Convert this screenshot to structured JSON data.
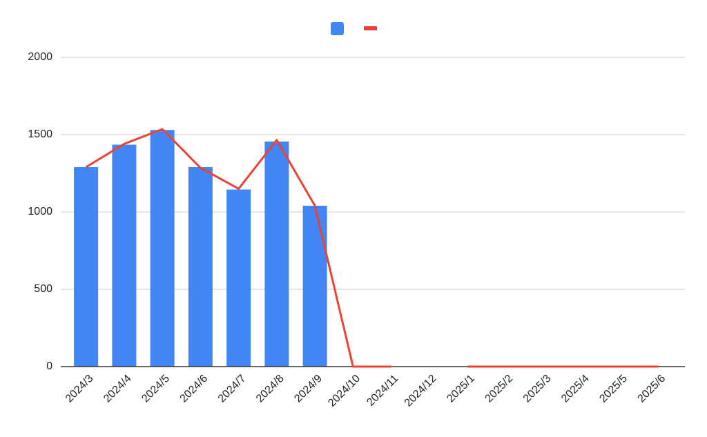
{
  "chart_data": {
    "type": "bar",
    "categories": [
      "2024/3",
      "2024/4",
      "2024/5",
      "2024/6",
      "2024/7",
      "2024/8",
      "2024/9",
      "2024/10",
      "2024/11",
      "2024/12",
      "2025/1",
      "2025/2",
      "2025/3",
      "2025/4",
      "2025/5",
      "2025/6"
    ],
    "series": [
      {
        "type": "bar",
        "color": "#4285f4",
        "values": [
          1290,
          1435,
          1530,
          1290,
          1145,
          1455,
          1040,
          0,
          0,
          null,
          0,
          0,
          0,
          0,
          0,
          0
        ]
      },
      {
        "type": "line",
        "color": "#ea4335",
        "values": [
          1290,
          1440,
          1535,
          1285,
          1150,
          1465,
          1040,
          0,
          0,
          null,
          0,
          0,
          0,
          0,
          0,
          0
        ]
      }
    ],
    "ylim": [
      0,
      2000
    ],
    "yticks": [
      0,
      500,
      1000,
      1500,
      2000
    ],
    "grid": true
  }
}
